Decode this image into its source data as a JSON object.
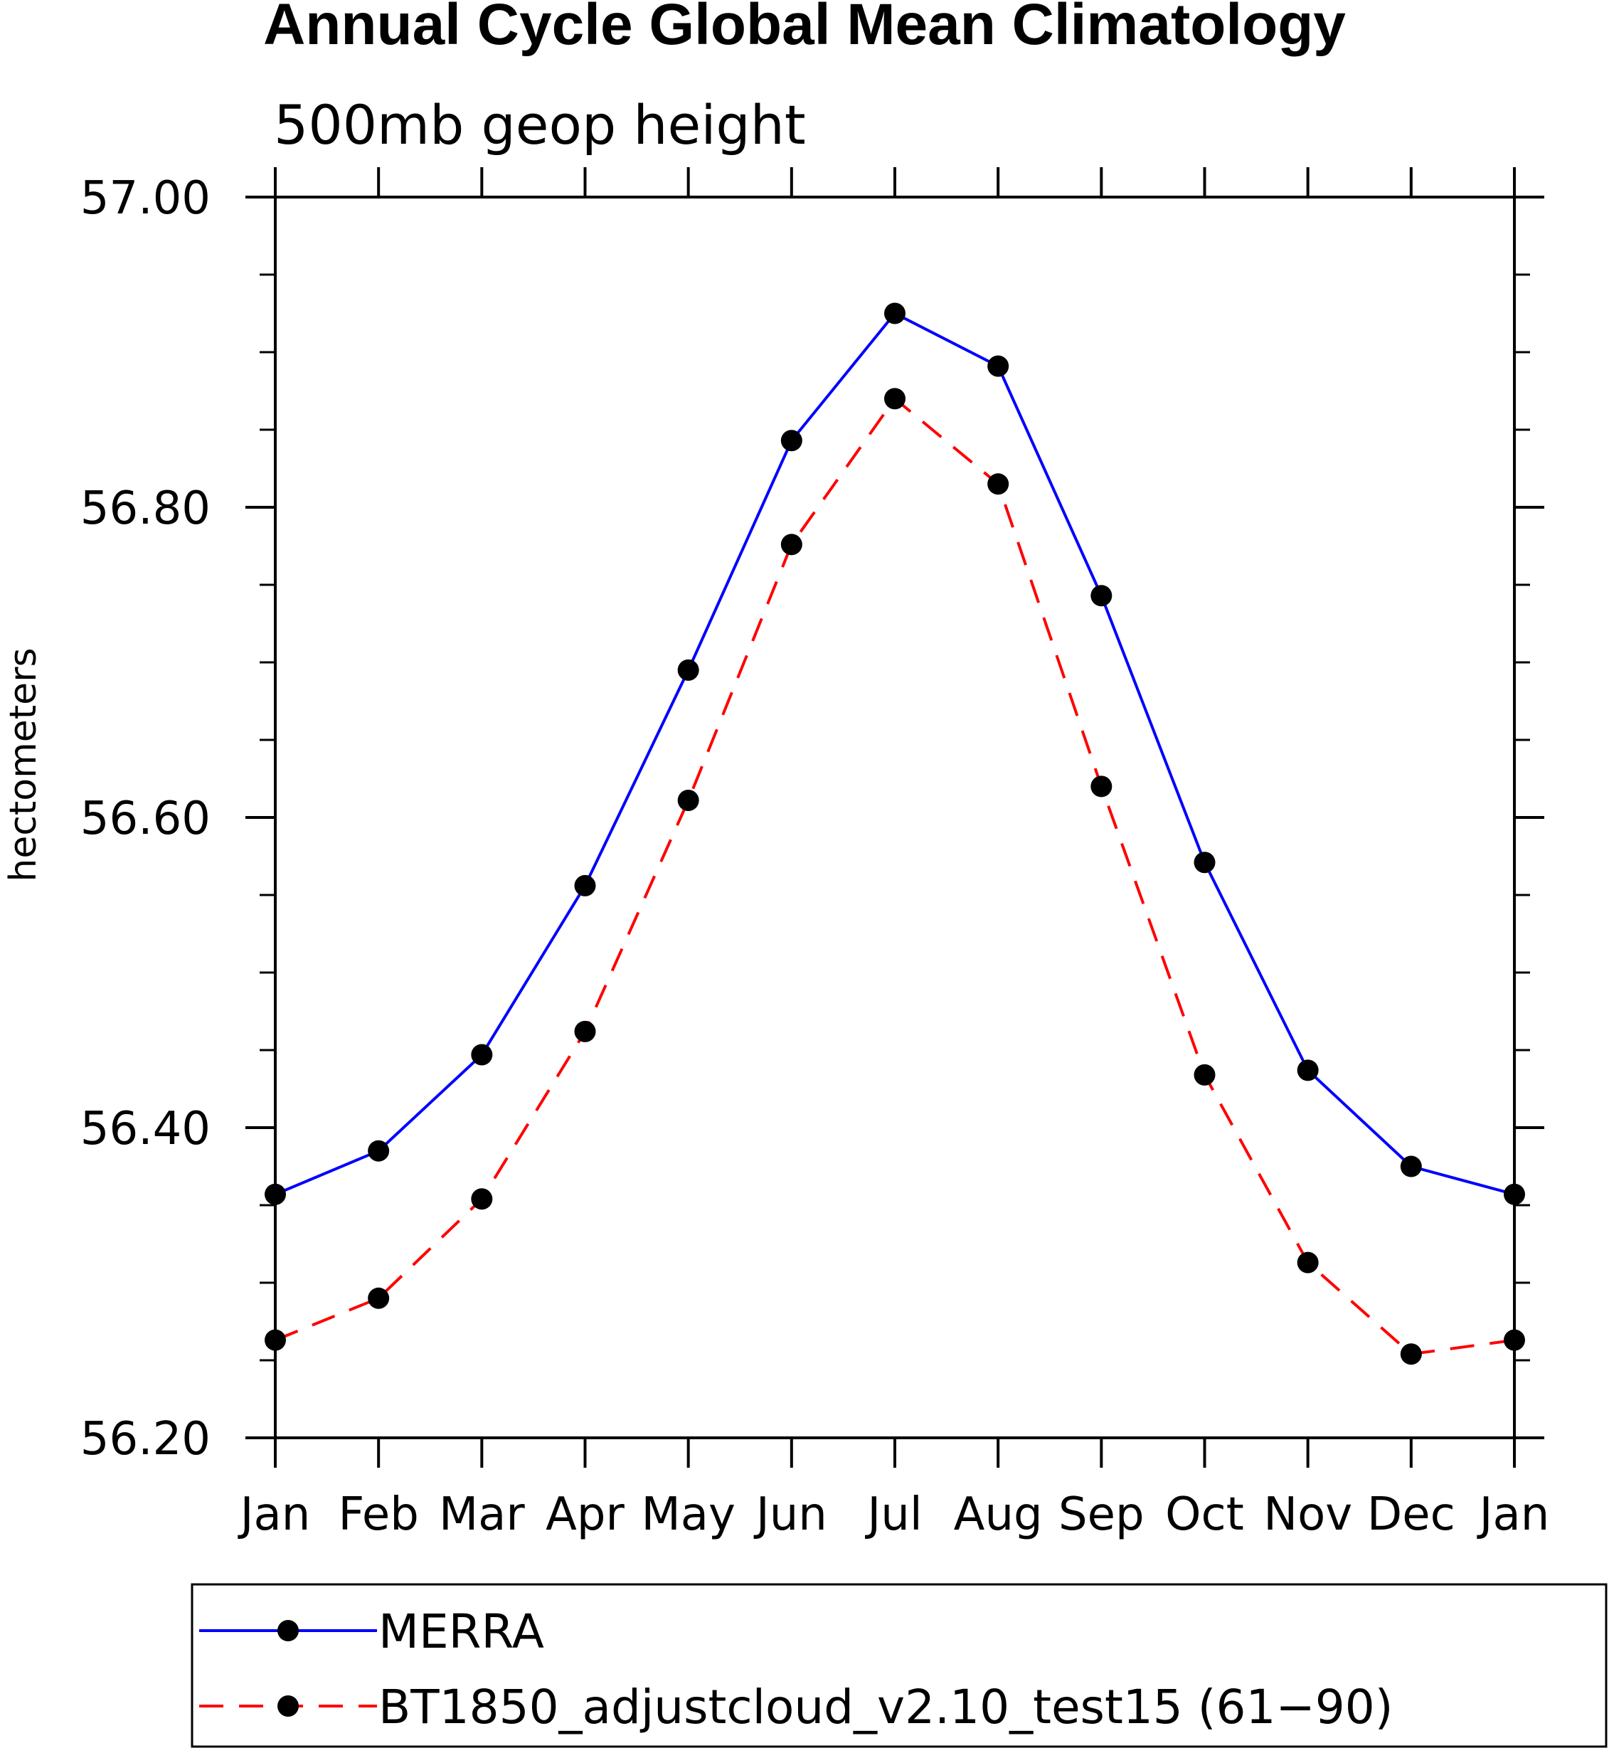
{
  "chart_data": {
    "type": "line",
    "title": "Annual Cycle Global Mean Climatology",
    "subtitle": "500mb geop height",
    "ylabel": "hectometers",
    "xlabel": "",
    "categories": [
      "Jan",
      "Feb",
      "Mar",
      "Apr",
      "May",
      "Jun",
      "Jul",
      "Aug",
      "Sep",
      "Oct",
      "Nov",
      "Dec",
      "Jan"
    ],
    "ylim": [
      56.2,
      57.0
    ],
    "yticks": [
      "57.00",
      "56.80",
      "56.60",
      "56.40",
      "56.20"
    ],
    "ytick_values": [
      57.0,
      56.8,
      56.6,
      56.4,
      56.2
    ],
    "y_minor_step": 0.05,
    "grid": false,
    "legend_position": "bottom",
    "series": [
      {
        "name": "MERRA",
        "color": "#0000ff",
        "dash": "solid",
        "marker": "filled-circle",
        "values": [
          56.357,
          56.385,
          56.447,
          56.556,
          56.695,
          56.843,
          56.925,
          56.891,
          56.743,
          56.571,
          56.437,
          56.375,
          56.357
        ]
      },
      {
        "name": "BT1850_adjustcloud_v2.10_test15 (61−90)",
        "color": "#ff0000",
        "dash": "dashed",
        "marker": "filled-circle",
        "values": [
          56.263,
          56.29,
          56.354,
          56.462,
          56.611,
          56.776,
          56.87,
          56.815,
          56.62,
          56.434,
          56.313,
          56.254,
          56.263
        ]
      }
    ]
  }
}
